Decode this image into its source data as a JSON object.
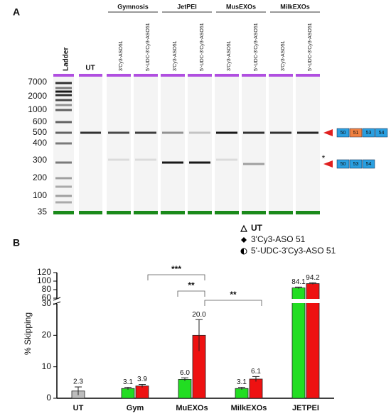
{
  "gel": {
    "panel_label": "A",
    "ladder_label": "Ladder",
    "ut_label": "UT",
    "groups": [
      {
        "name": "Gymnosis",
        "lanes": [
          "3'Cy3-ASO51",
          "5'-UDC-3'Cy3-ASO51"
        ]
      },
      {
        "name": "JetPEI",
        "lanes": [
          "3'Cy3-ASO51",
          "5'-UDC-3'Cy3-ASO51"
        ]
      },
      {
        "name": "MusEXOs",
        "lanes": [
          "3'Cy3-ASO51",
          "5'-UDC-3'Cy3-ASO51"
        ]
      },
      {
        "name": "MilkEXOs",
        "lanes": [
          "3'Cy3-ASO51",
          "5'-UDC-3'Cy3-ASO51"
        ]
      }
    ],
    "sizes": [
      7000,
      2000,
      1000,
      600,
      500,
      400,
      300,
      200,
      100,
      35
    ],
    "exons_full": [
      "50",
      "51",
      "53",
      "54"
    ],
    "exons_skipped": [
      "50",
      "53",
      "54"
    ],
    "marker": "*"
  },
  "chart_data": {
    "type": "bar",
    "panel_label": "B",
    "ylabel": "% Skipping",
    "categories": [
      "UT",
      "Gym",
      "MuEXOs",
      "MilkEXOs",
      "JETPEI"
    ],
    "series": [
      {
        "name": "UT",
        "color": "#bdbdbd",
        "values": [
          2.3,
          null,
          null,
          null,
          null
        ],
        "errors": [
          1.3,
          null,
          null,
          null,
          null
        ],
        "value_labels": [
          "2.3",
          null,
          null,
          null,
          null
        ]
      },
      {
        "name": "3'Cy3-ASO 51",
        "color": "#22dd22",
        "values": [
          null,
          3.1,
          6.0,
          3.1,
          84.1
        ],
        "errors": [
          null,
          0.4,
          0.5,
          0.4,
          2
        ],
        "value_labels": [
          null,
          "3.1",
          "6.0",
          "3.1",
          "84.1"
        ]
      },
      {
        "name": "5'-UDC-3'Cy3-ASO 51",
        "color": "#ee1111",
        "values": [
          null,
          3.9,
          20.0,
          6.1,
          94.2
        ],
        "errors": [
          null,
          0.5,
          5,
          0.8,
          2
        ],
        "value_labels": [
          null,
          "3.9",
          "20.0",
          "6.1",
          "94.2"
        ]
      }
    ],
    "ylim": [
      0,
      30
    ],
    "yticks": [
      0,
      10,
      20,
      30
    ],
    "ylim_upper": [
      60,
      120
    ],
    "yticks_upper": [
      60,
      80,
      100,
      120
    ],
    "annotations": [
      "***",
      "**",
      "**"
    ]
  }
}
